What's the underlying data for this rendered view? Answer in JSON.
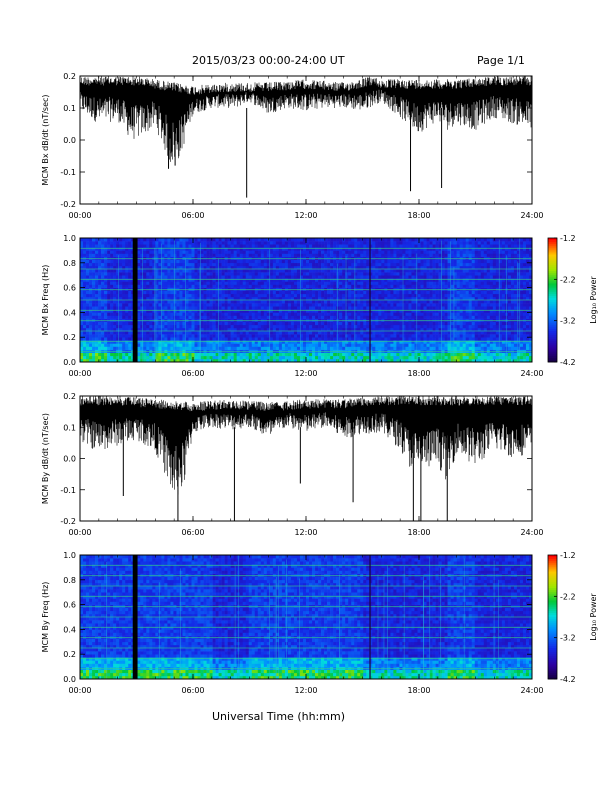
{
  "header": {
    "date_range": "2015/03/23  00:00-24:00 UT",
    "page": "Page 1/1"
  },
  "footer": {
    "xlabel": "Universal Time (hh:mm)"
  },
  "colors": {
    "trace": "#000000",
    "axis": "#000000",
    "background": "#ffffff"
  },
  "chart_data": [
    {
      "type": "line",
      "ylabel": "MCM Bx dB/dt (nT/sec)",
      "x_ticks": [
        "00:00",
        "06:00",
        "12:00",
        "18:00",
        "24:00"
      ],
      "xlim_hours": [
        0,
        24
      ],
      "ylim": [
        -0.2,
        0.2
      ],
      "y_ticks": [
        "0.2",
        "0.1",
        "0.0",
        "-0.1",
        "-0.2"
      ],
      "series": [
        {
          "upper_envelope": {
            "x": [
              0,
              2,
              3,
              4,
              6,
              8,
              10,
              12,
              14,
              15.5,
              16,
              18,
              20,
              22,
              24
            ],
            "y": [
              0.2,
              0.2,
              0.2,
              0.19,
              0.17,
              0.18,
              0.18,
              0.19,
              0.18,
              0.2,
              0.19,
              0.19,
              0.19,
              0.2,
              0.2
            ]
          },
          "lower_envelope": {
            "x": [
              0,
              1,
              2,
              2.7,
              3,
              4,
              4.8,
              5.3,
              6,
              7,
              8.3,
              9,
              10,
              11,
              12,
              13,
              14,
              15,
              16,
              17,
              17.5,
              18,
              19,
              19.5,
              20,
              21,
              22,
              23,
              24
            ],
            "y": [
              0.09,
              0.05,
              0.06,
              0.0,
              0.0,
              0.04,
              -0.08,
              -0.06,
              0.08,
              0.1,
              0.1,
              0.12,
              0.08,
              0.1,
              0.09,
              0.1,
              0.1,
              0.09,
              0.12,
              0.07,
              0.04,
              0.02,
              0.06,
              0.03,
              0.05,
              0.03,
              0.07,
              0.05,
              0.03
            ]
          },
          "spikes": [
            {
              "x": 8.85,
              "y": -0.18
            },
            {
              "x": 17.55,
              "y": -0.16
            },
            {
              "x": 19.2,
              "y": -0.15
            },
            {
              "x": 5.05,
              "y": -0.08
            },
            {
              "x": 4.7,
              "y": -0.09
            }
          ]
        }
      ]
    },
    {
      "type": "heatmap",
      "ylabel": "MCM Bx Freq (Hz)",
      "x_ticks": [
        "00:00",
        "06:00",
        "12:00",
        "18:00",
        "24:00"
      ],
      "xlim_hours": [
        0,
        24
      ],
      "ylim": [
        0,
        1.0
      ],
      "y_ticks": [
        "1.0",
        "0.8",
        "0.6",
        "0.4",
        "0.2",
        "0.0"
      ],
      "colorbar": {
        "label": "Log₁₀ Power",
        "ticks": [
          "-1.2",
          "-2.2",
          "-3.2",
          "-4.2"
        ],
        "range": [
          -4.2,
          -1.2
        ]
      },
      "data_gaps_hours": [
        2.8,
        2.95
      ],
      "vertical_line_hours": [
        15.4
      ],
      "harmonic_lines_hz": [
        0.083,
        0.167,
        0.25,
        0.333,
        0.417,
        0.5,
        0.583,
        0.667,
        0.75,
        0.833,
        0.917,
        1.0
      ],
      "enhanced_power_hours": [
        [
          0,
          1.5
        ],
        [
          4,
          6
        ],
        [
          19.5,
          21
        ]
      ]
    },
    {
      "type": "line",
      "ylabel": "MCM By dB/dt (nT/sec)",
      "x_ticks": [
        "00:00",
        "06:00",
        "12:00",
        "18:00",
        "24:00"
      ],
      "xlim_hours": [
        0,
        24
      ],
      "ylim": [
        -0.2,
        0.2
      ],
      "y_ticks": [
        "0.2",
        "0.1",
        "0.0",
        "-0.1",
        "-0.2"
      ],
      "series": [
        {
          "upper_envelope": {
            "x": [
              0,
              2,
              4,
              6,
              8,
              10,
              12,
              14,
              15.5,
              16,
              18,
              20,
              22,
              24
            ],
            "y": [
              0.2,
              0.2,
              0.19,
              0.18,
              0.19,
              0.18,
              0.19,
              0.19,
              0.2,
              0.2,
              0.2,
              0.2,
              0.2,
              0.2
            ]
          },
          "lower_envelope": {
            "x": [
              0,
              1,
              2,
              3,
              4,
              4.5,
              5,
              5.5,
              6,
              7,
              8,
              9,
              10,
              11,
              12,
              13,
              14,
              15,
              16,
              17,
              17.5,
              18,
              19,
              19.5,
              20,
              21,
              22,
              23,
              24
            ],
            "y": [
              0.05,
              0.02,
              0.04,
              0.06,
              0.02,
              -0.05,
              -0.14,
              -0.1,
              0.08,
              0.1,
              0.09,
              0.1,
              0.06,
              0.1,
              0.08,
              0.1,
              0.06,
              0.08,
              0.08,
              0.03,
              -0.03,
              -0.05,
              -0.02,
              -0.08,
              0.02,
              -0.03,
              0.03,
              0.0,
              0.02
            ]
          },
          "spikes": [
            {
              "x": 5.2,
              "y": -0.2
            },
            {
              "x": 8.2,
              "y": -0.2
            },
            {
              "x": 17.7,
              "y": -0.2
            },
            {
              "x": 18.1,
              "y": -0.2
            },
            {
              "x": 19.5,
              "y": -0.2
            },
            {
              "x": 2.3,
              "y": -0.12
            },
            {
              "x": 11.7,
              "y": -0.08
            },
            {
              "x": 14.5,
              "y": -0.14
            }
          ]
        }
      ]
    },
    {
      "type": "heatmap",
      "ylabel": "MCM By Freq (Hz)",
      "x_ticks": [
        "00:00",
        "06:00",
        "12:00",
        "18:00",
        "24:00"
      ],
      "xlim_hours": [
        0,
        24
      ],
      "ylim": [
        0,
        1.0
      ],
      "y_ticks": [
        "1.0",
        "0.8",
        "0.6",
        "0.4",
        "0.2",
        "0.0"
      ],
      "colorbar": {
        "label": "Log₁₀ Power",
        "ticks": [
          "-1.2",
          "-2.2",
          "-3.2",
          "-4.2"
        ],
        "range": [
          -4.2,
          -1.2
        ]
      },
      "data_gaps_hours": [
        2.8,
        2.95
      ],
      "vertical_line_hours": [
        15.4
      ],
      "harmonic_lines_hz": [
        0.083,
        0.167,
        0.25,
        0.333,
        0.417,
        0.5,
        0.583,
        0.667,
        0.75,
        0.833,
        0.917,
        1.0
      ],
      "enhanced_power_hours": [
        [
          0,
          7
        ],
        [
          9,
          15
        ],
        [
          19.5,
          21
        ]
      ]
    }
  ]
}
